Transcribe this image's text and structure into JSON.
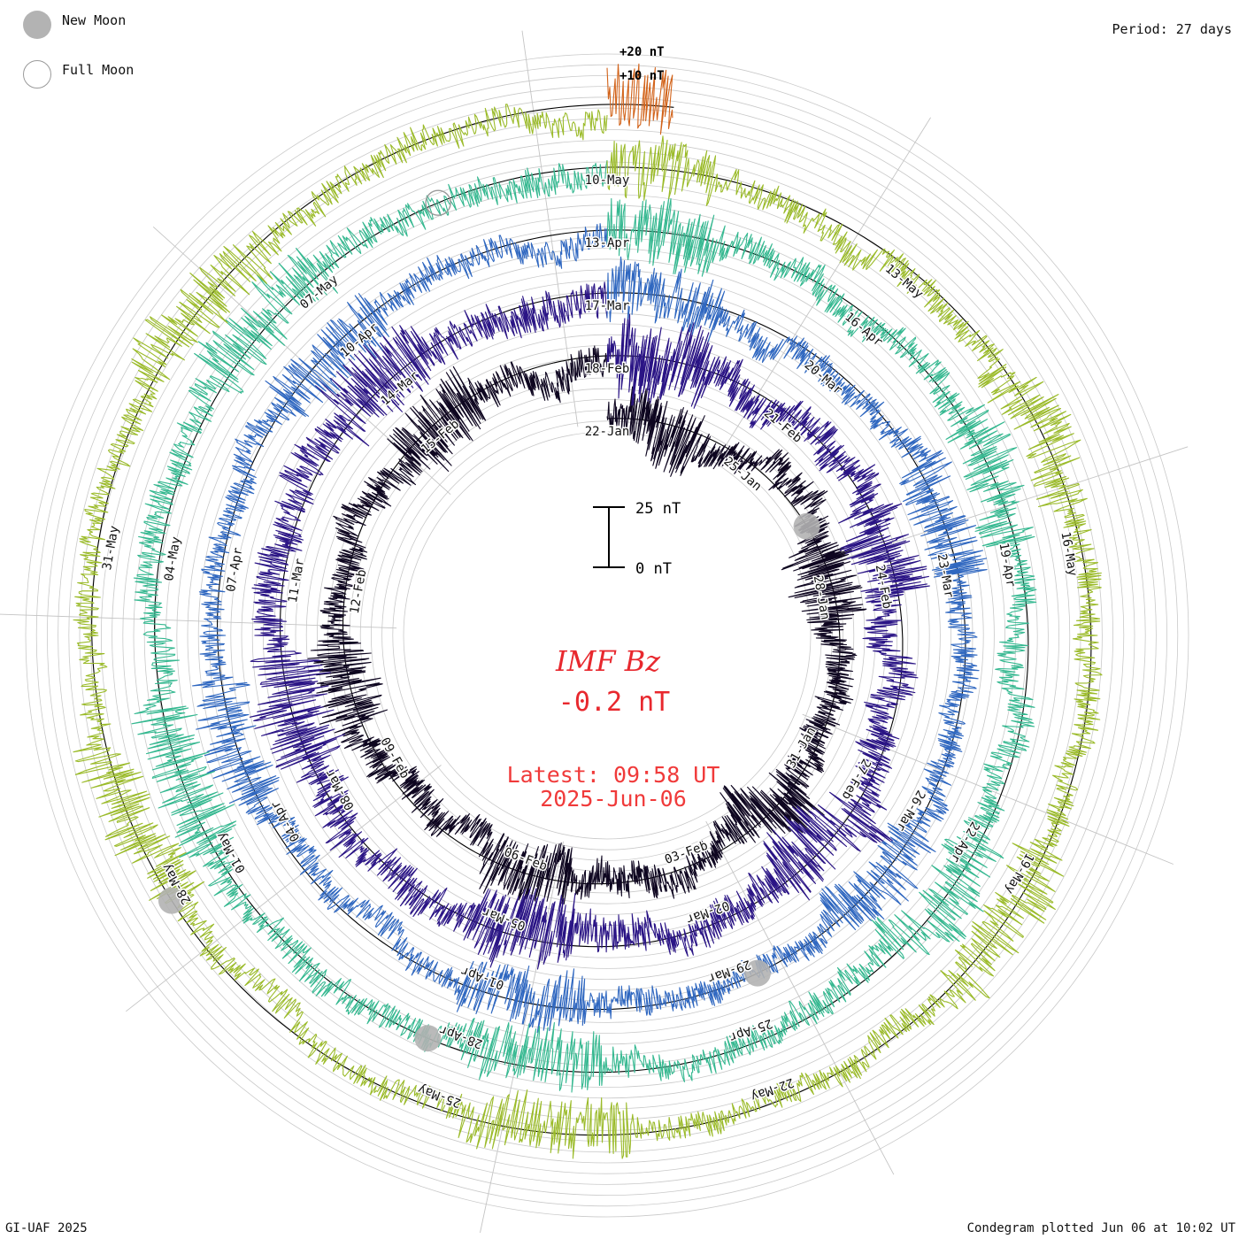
{
  "legend": {
    "new_moon": "New Moon",
    "full_moon": "Full Moon",
    "new_moon_icon": "filled-grey-circle",
    "full_moon_icon": "hollow-grey-circle",
    "new_moon_color": "#b3b3b3",
    "full_moon_color": "#9a9a9a"
  },
  "period_label": "Period: 27 days",
  "footer": {
    "credit": "GI-UAF 2025",
    "plotted": "Condegram plotted Jun 06 at 10:02 UT"
  },
  "chart_data": {
    "type": "condegram",
    "title": "IMF Bz",
    "current_value": "-0.2 nT",
    "latest_time": "Latest: 09:58 UT",
    "latest_date": "2025-Jun-06",
    "period_days": 27,
    "scale_labels": [
      "+20 nT",
      "+10 nT"
    ],
    "scale_bar": {
      "top_label": "25 nT",
      "bottom_label": "0 nT",
      "span_nT": 25
    },
    "amplitude_range_nT": [
      -30,
      30
    ],
    "rotations": [
      {
        "index": 0,
        "color": "#0e0620",
        "amplitude_nT": 14,
        "labels": [
          "22-Jan",
          "25-Jan",
          "28-Jan",
          "31-Jan",
          "03-Feb",
          "06-Feb",
          "09-Feb",
          "12-Feb",
          "15-Feb"
        ]
      },
      {
        "index": 1,
        "color": "#2a1485",
        "amplitude_nT": 16,
        "labels": [
          "18-Feb",
          "21-Feb",
          "24-Feb",
          "27-Feb",
          "02-Mar",
          "05-Mar",
          "08-Mar",
          "11-Mar",
          "14-Mar"
        ]
      },
      {
        "index": 2,
        "color": "#2f67c0",
        "amplitude_nT": 12,
        "labels": [
          "17-Mar",
          "20-Mar",
          "23-Mar",
          "26-Mar",
          "29-Mar",
          "01-Apr",
          "04-Apr",
          "07-Apr",
          "10-Apr"
        ]
      },
      {
        "index": 3,
        "color": "#35b890",
        "amplitude_nT": 13,
        "labels": [
          "13-Apr",
          "16-Apr",
          "19-Apr",
          "22-Apr",
          "25-Apr",
          "28-Apr",
          "01-May",
          "04-May",
          "07-May"
        ]
      },
      {
        "index": 4,
        "color": "#9bbb2a",
        "amplitude_nT": 12,
        "labels": [
          "10-May",
          "13-May",
          "16-May",
          "19-May",
          "22-May",
          "25-May",
          "28-May",
          "31-May"
        ]
      },
      {
        "index": 5,
        "color": "#d2631a",
        "amplitude_nT": 15,
        "labels": []
      }
    ],
    "moon_phases": [
      {
        "type": "new",
        "rotation": 0,
        "day": 4.6
      },
      {
        "type": "new",
        "rotation": 2,
        "day": 11.7
      },
      {
        "type": "new",
        "rotation": 3,
        "day": 15.3
      },
      {
        "type": "new",
        "rotation": 4,
        "day": 17.9
      },
      {
        "type": "full",
        "rotation": 3,
        "day": 25.4
      }
    ]
  }
}
